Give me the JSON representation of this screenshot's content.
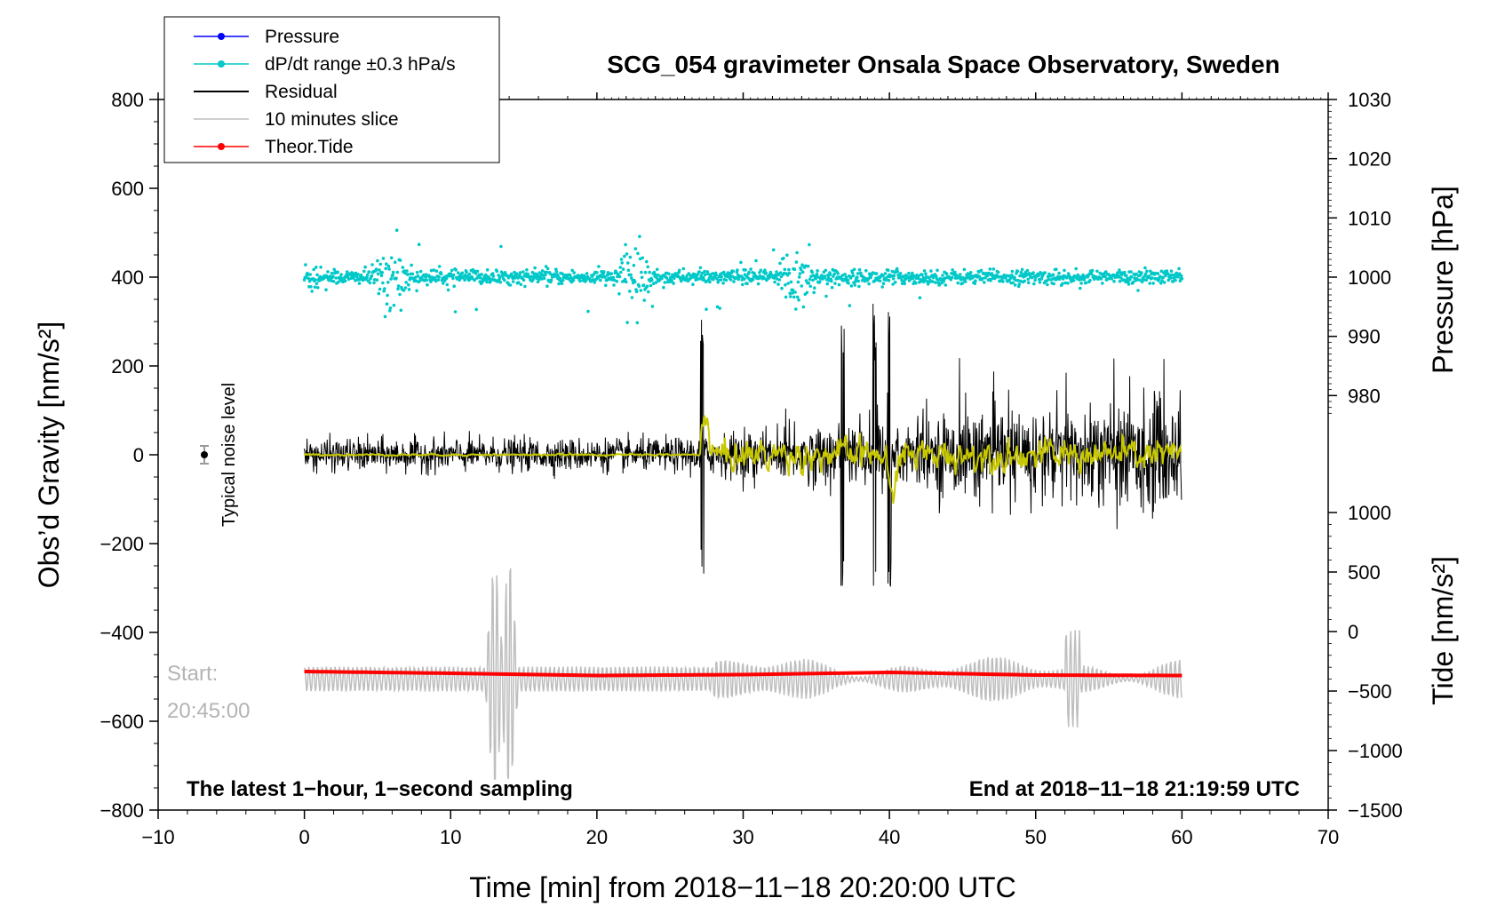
{
  "chart_data": {
    "type": "line",
    "title": "SCG_054 gravimeter Onsala Space Observatory, Sweden",
    "xlabel": "Time [min] from 2018−11−18 20:20:00 UTC",
    "ylabel": "Obs’d Gravity [nm/s²]",
    "ylabel_pressure": "Pressure [hPa]",
    "ylabel_tide": "Tide [nm/s²]",
    "xlim": [
      -10,
      70
    ],
    "ylim": [
      -800,
      800
    ],
    "pressure_lim": [
      970,
      1030
    ],
    "tide_lim": [
      -1500,
      1000
    ],
    "x_ticks": [
      -10,
      0,
      10,
      20,
      30,
      40,
      50,
      60,
      70
    ],
    "x_tick_labels": [
      "−10",
      "0",
      "10",
      "20",
      "30",
      "40",
      "50",
      "60",
      "70"
    ],
    "y_ticks": [
      -800,
      -600,
      -400,
      -200,
      0,
      200,
      400,
      600,
      800
    ],
    "y_tick_labels": [
      "−800",
      "−600",
      "−400",
      "−200",
      "0",
      "200",
      "400",
      "600",
      "800"
    ],
    "pressure_ticks": [
      980,
      990,
      1000,
      1010,
      1020,
      1030
    ],
    "pressure_tick_labels": [
      "980",
      "990",
      "1000",
      "1010",
      "1020",
      "1030"
    ],
    "tide_ticks": [
      -1500,
      -1000,
      -500,
      0,
      500,
      1000
    ],
    "tide_tick_labels": [
      "−1500",
      "−1000",
      "−500",
      "0",
      "500",
      "1000"
    ],
    "legend": [
      {
        "label": "Pressure",
        "color": "#0000ff",
        "marker": true
      },
      {
        "label": "dP/dt range ±0.3 hPa/s",
        "color": "#00c8c8",
        "marker": true
      },
      {
        "label": "Residual",
        "color": "#000000",
        "marker": false
      },
      {
        "label": "10 minutes slice",
        "color": "#bebebe",
        "marker": false
      },
      {
        "label": "Theor.Tide",
        "color": "#ff0000",
        "marker": true
      }
    ],
    "series": [
      {
        "name": "dP/dt range ±0.3 hPa/s",
        "color": "#00c8c8",
        "x_range": [
          0,
          60
        ],
        "center": 400,
        "bursts_min": [
          6,
          22.5,
          33.5
        ],
        "peak_max": 512,
        "peak_min": 265
      },
      {
        "name": "Residual",
        "color": "#000000",
        "x_range": [
          0,
          60
        ],
        "center": 0,
        "peak_max": 340,
        "peak_min": -295,
        "spikes_min": [
          27.2,
          36.8,
          39.0,
          40.0
        ]
      },
      {
        "name": "Residual (smoothed)",
        "color": "#c8c800",
        "x_range": [
          0,
          60
        ],
        "center": 0,
        "peak_max": 90,
        "peak_min": -110
      },
      {
        "name": "10 minutes slice",
        "color": "#bebebe",
        "x_range": [
          0,
          60
        ],
        "center": -505,
        "peak_max": -180,
        "peak_min": -730,
        "spikes_min": [
          13,
          14
        ]
      },
      {
        "name": "Theor.Tide",
        "color": "#ff0000",
        "x_range": [
          0,
          60
        ],
        "values": [
          -488,
          -492,
          -497,
          -495,
          -490,
          -496,
          -497
        ]
      }
    ],
    "noise_marker": {
      "x": -7,
      "y": 0,
      "error": 20,
      "label": "Typical noise level"
    },
    "slice_start_label": "Start:",
    "slice_start_time": "20:45:00",
    "footer_left": "The latest 1−hour, 1−second sampling",
    "footer_right": "End at 2018−11−18 21:19:59 UTC"
  }
}
